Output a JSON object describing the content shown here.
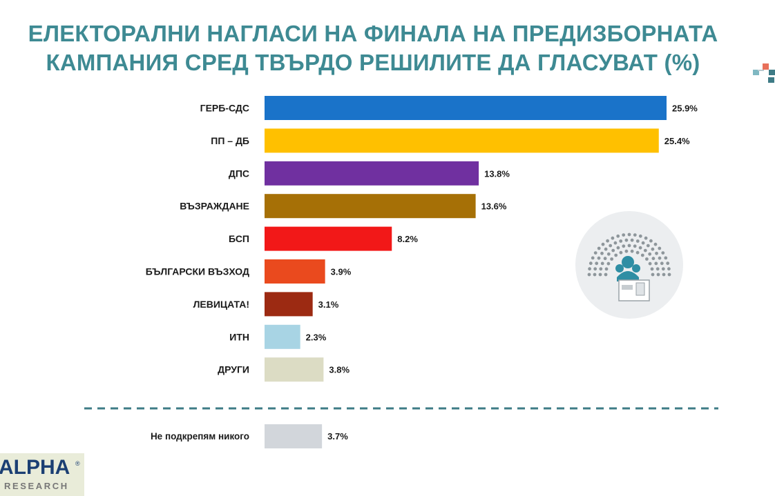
{
  "title_lines": [
    "ЕЛЕКТОРАЛНИ НАГЛАСИ НА ФИНАЛА НА ПРЕДИЗБОРНАТА",
    "КАМПАНИЯ СРЕД ТВЪРДО РЕШИЛИТЕ ДА ГЛАСУВАТ (%)"
  ],
  "chart_data": {
    "type": "bar",
    "orientation": "horizontal",
    "title": "ЕЛЕКТОРАЛНИ НАГЛАСИ НА ФИНАЛА НА ПРЕДИЗБОРНАТА КАМПАНИЯ СРЕД ТВЪРДО РЕШИЛИТЕ ДА ГЛАСУВАТ (%)",
    "unit": "%",
    "categories": [
      "ГЕРБ-СДС",
      "ПП – ДБ",
      "ДПС",
      "ВЪЗРАЖДАНЕ",
      "БСП",
      "БЪЛГАРСКИ ВЪЗХОД",
      "ЛЕВИЦАТА!",
      "ИТН",
      "ДРУГИ"
    ],
    "values": [
      25.9,
      25.4,
      13.8,
      13.6,
      8.2,
      3.9,
      3.1,
      2.3,
      3.8
    ],
    "value_labels": [
      "25.9%",
      "25.4%",
      "13.8%",
      "13.6%",
      "8.2%",
      "3.9%",
      "3.1%",
      "2.3%",
      "3.8%"
    ],
    "colors": [
      "#1a73c9",
      "#ffc000",
      "#7030a0",
      "#a67006",
      "#f21818",
      "#ea4a1e",
      "#9c2a12",
      "#a8d4e4",
      "#dcdcc4"
    ],
    "separated": {
      "category": "Не подкрепям никого",
      "value": 3.7,
      "value_label": "3.7%",
      "color": "#d2d6db"
    },
    "xlim": [
      0,
      25.9
    ],
    "grid": false,
    "legend": "none",
    "axes_visible": false
  },
  "colors": {
    "title": "#3e8a93",
    "separator": "#3e7b86"
  },
  "logo": {
    "main": "ALPHA",
    "sub": "RESEARCH",
    "reg": "®"
  }
}
